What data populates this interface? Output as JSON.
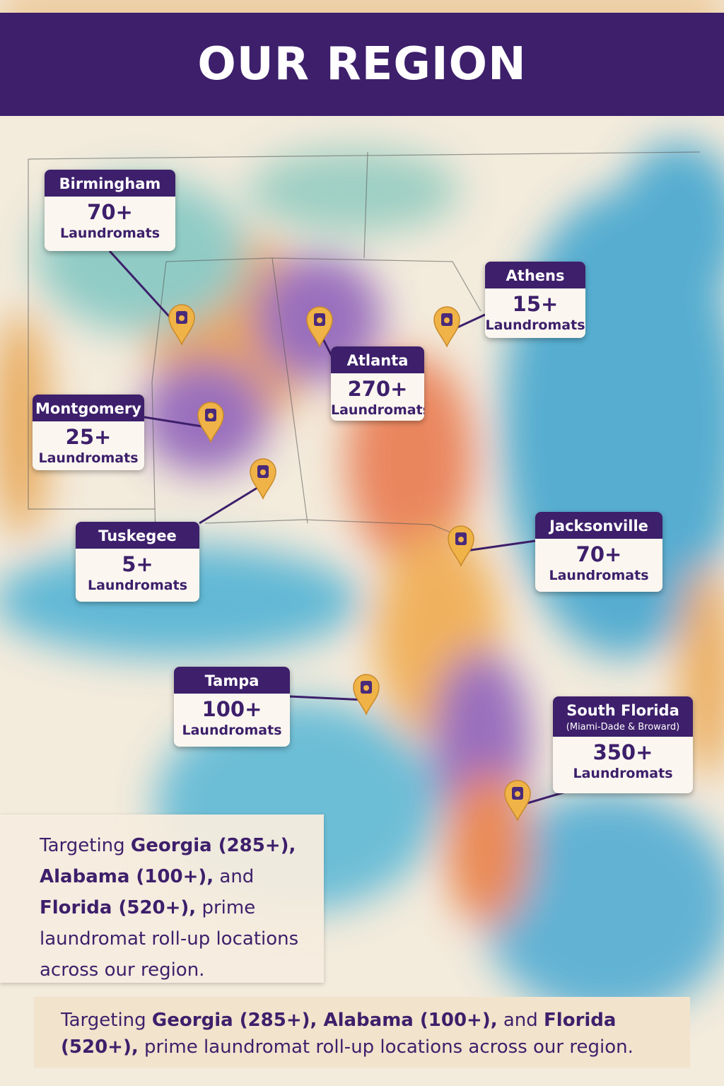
{
  "header": {
    "title": "OUR REGION"
  },
  "locations": [
    {
      "name": "Birmingham",
      "count": "70+",
      "unit": "Laundromats"
    },
    {
      "name": "Athens",
      "count": "15+",
      "unit": "Laundromats"
    },
    {
      "name": "Atlanta",
      "count": "270+",
      "unit": "Laundromats"
    },
    {
      "name": "Montgomery",
      "count": "25+",
      "unit": "Laundromats"
    },
    {
      "name": "Tuskegee",
      "count": "5+",
      "unit": "Laundromats"
    },
    {
      "name": "Jacksonville",
      "count": "70+",
      "unit": "Laundromats"
    },
    {
      "name": "Tampa",
      "count": "100+",
      "unit": "Laundromats"
    },
    {
      "name": "South Florida",
      "note": "(Miami-Dade & Broward)",
      "count": "350+",
      "unit": "Laundromats"
    }
  ],
  "summary_box": {
    "segments": [
      {
        "text": "Targeting ",
        "strong": false
      },
      {
        "text": "Georgia (285+), Alabama (100+),",
        "strong": true
      },
      {
        "text": " and ",
        "strong": false
      },
      {
        "text": "Florida (520+),",
        "strong": true
      },
      {
        "text": " prime laundromat roll-up locations across our region.",
        "strong": false
      }
    ]
  },
  "footer": {
    "segments": [
      {
        "text": "Targeting ",
        "strong": false
      },
      {
        "text": "Georgia (285+), Alabama (100+),",
        "strong": true
      },
      {
        "text": " and ",
        "strong": false
      },
      {
        "text": "Florida (520+),",
        "strong": true
      },
      {
        "text": " prime laundromat roll-up locations across our region.",
        "strong": false
      }
    ]
  }
}
